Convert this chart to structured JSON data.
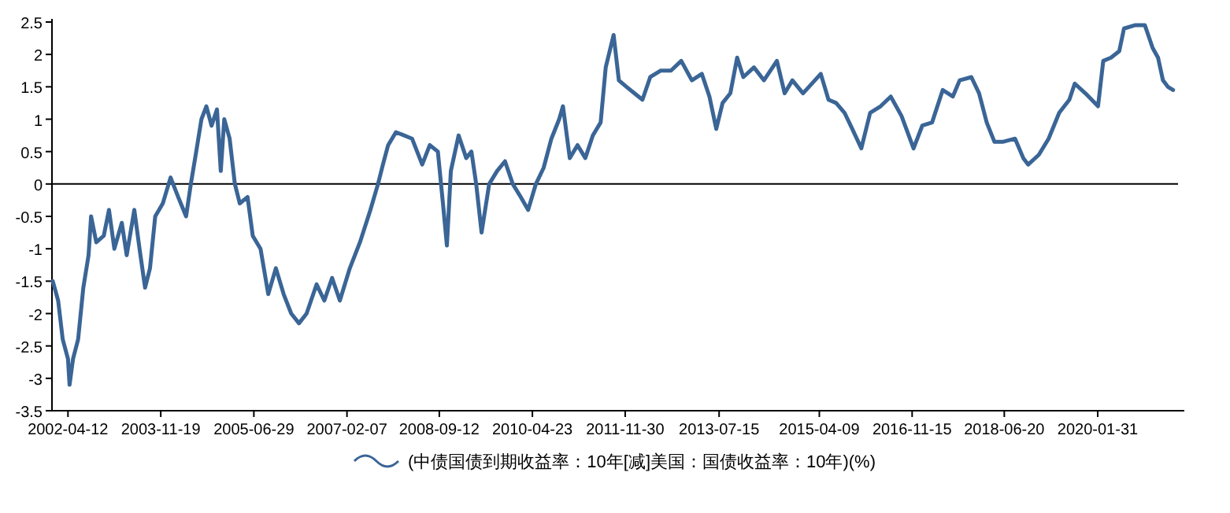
{
  "chart_data": {
    "type": "line",
    "x": [
      "2002-01-06",
      "2002-02-09",
      "2002-03-10",
      "2002-04-12",
      "2002-04-22",
      "2002-05-14",
      "2002-06-15",
      "2002-07-18",
      "2002-08-20",
      "2002-09-05",
      "2002-10-08",
      "2002-11-24",
      "2002-12-27",
      "2003-01-30",
      "2003-03-18",
      "2003-04-18",
      "2003-06-05",
      "2003-07-08",
      "2003-08-12",
      "2003-09-12",
      "2003-10-15",
      "2003-12-02",
      "2004-01-20",
      "2004-03-08",
      "2004-04-27",
      "2004-05-27",
      "2004-06-30",
      "2004-08-02",
      "2004-09-02",
      "2004-10-05",
      "2004-11-08",
      "2004-12-02",
      "2004-12-24",
      "2005-01-27",
      "2005-03-01",
      "2005-04-01",
      "2005-05-20",
      "2005-06-22",
      "2005-08-10",
      "2005-09-28",
      "2005-11-15",
      "2006-01-03",
      "2006-02-20",
      "2006-04-10",
      "2006-05-28",
      "2006-07-30",
      "2006-09-17",
      "2006-11-05",
      "2006-12-24",
      "2007-02-25",
      "2007-04-30",
      "2007-07-05",
      "2007-08-22",
      "2007-09-22",
      "2007-10-25",
      "2007-12-13",
      "2008-03-24",
      "2008-05-27",
      "2008-07-14",
      "2008-09-03",
      "2008-10-05",
      "2008-10-30",
      "2008-11-24",
      "2009-01-12",
      "2009-03-01",
      "2009-04-03",
      "2009-05-03",
      "2009-06-06",
      "2009-07-24",
      "2009-09-12",
      "2009-11-01",
      "2009-12-20",
      "2010-02-08",
      "2010-03-27",
      "2010-05-15",
      "2010-07-03",
      "2010-08-21",
      "2010-10-09",
      "2010-11-02",
      "2010-12-15",
      "2011-02-02",
      "2011-03-23",
      "2011-05-10",
      "2011-06-28",
      "2011-07-30",
      "2011-09-18",
      "2011-10-21",
      "2011-12-08",
      "2012-01-27",
      "2012-03-18",
      "2012-05-06",
      "2012-07-10",
      "2012-09-14",
      "2012-11-18",
      "2013-01-24",
      "2013-03-28",
      "2013-05-15",
      "2013-06-27",
      "2013-08-06",
      "2013-09-24",
      "2013-11-06",
      "2013-12-15",
      "2014-02-20",
      "2014-04-24",
      "2014-07-15",
      "2014-09-02",
      "2014-10-21",
      "2014-12-27",
      "2015-04-18",
      "2015-06-06",
      "2015-07-24",
      "2015-09-15",
      "2015-11-03",
      "2015-12-30",
      "2016-02-24",
      "2016-04-30",
      "2016-07-03",
      "2016-09-09",
      "2016-11-24",
      "2017-01-18",
      "2017-03-21",
      "2017-05-27",
      "2017-07-30",
      "2017-09-11",
      "2017-11-24",
      "2018-01-12",
      "2018-03-01",
      "2018-04-19",
      "2018-06-09",
      "2018-08-27",
      "2018-10-18",
      "2018-11-18",
      "2019-01-24",
      "2019-03-27",
      "2019-06-02",
      "2019-08-05",
      "2019-09-08",
      "2019-11-14",
      "2020-02-02",
      "2020-03-06",
      "2020-04-24",
      "2020-06-15",
      "2020-07-15",
      "2020-09-21",
      "2020-11-24",
      "2021-01-12",
      "2021-02-15",
      "2021-03-18",
      "2021-04-18",
      "2021-05-21"
    ],
    "series": [
      {
        "name": "(中债国债到期收益率：10年[减]美国：国债收益率：10年)(%)",
        "color": "#3a6596",
        "values": [
          -1.5,
          -1.8,
          -2.4,
          -2.7,
          -3.1,
          -2.7,
          -2.4,
          -1.6,
          -1.1,
          -0.5,
          -0.9,
          -0.8,
          -0.4,
          -1.0,
          -0.6,
          -1.1,
          -0.4,
          -1.0,
          -1.6,
          -1.3,
          -0.5,
          -0.3,
          0.1,
          -0.2,
          -0.5,
          0.0,
          0.5,
          1.0,
          1.2,
          0.9,
          1.15,
          0.2,
          1.0,
          0.7,
          0.0,
          -0.3,
          -0.2,
          -0.8,
          -1.0,
          -1.7,
          -1.3,
          -1.7,
          -2.0,
          -2.15,
          -2.0,
          -1.55,
          -1.8,
          -1.45,
          -1.8,
          -1.3,
          -0.9,
          -0.4,
          0.0,
          0.3,
          0.6,
          0.8,
          0.7,
          0.3,
          0.6,
          0.5,
          -0.3,
          -0.95,
          0.2,
          0.75,
          0.4,
          0.5,
          0.0,
          -0.75,
          0.0,
          0.2,
          0.35,
          0.0,
          -0.2,
          -0.4,
          0.0,
          0.25,
          0.7,
          1.0,
          1.2,
          0.4,
          0.6,
          0.4,
          0.75,
          0.95,
          1.8,
          2.3,
          1.6,
          1.5,
          1.4,
          1.3,
          1.65,
          1.75,
          1.75,
          1.9,
          1.6,
          1.7,
          1.35,
          0.85,
          1.25,
          1.4,
          1.95,
          1.65,
          1.8,
          1.6,
          1.9,
          1.4,
          1.6,
          1.4,
          1.7,
          1.3,
          1.25,
          1.1,
          0.85,
          0.55,
          1.1,
          1.2,
          1.35,
          1.05,
          0.55,
          0.9,
          0.95,
          1.45,
          1.35,
          1.6,
          1.65,
          1.4,
          0.95,
          0.65,
          0.65,
          0.7,
          0.4,
          0.3,
          0.45,
          0.7,
          1.1,
          1.3,
          1.55,
          1.4,
          1.2,
          1.9,
          1.95,
          2.05,
          2.4,
          2.45,
          2.45,
          2.1,
          1.95,
          1.6,
          1.5,
          1.45
        ]
      }
    ],
    "xlim": [
      "2002-01-01",
      "2021-07-31"
    ],
    "xticks": [
      "2002-04-12",
      "2003-11-19",
      "2005-06-29",
      "2007-02-07",
      "2008-09-12",
      "2010-04-23",
      "2011-11-30",
      "2013-07-15",
      "2015-04-09",
      "2016-11-15",
      "2018-06-20",
      "2020-01-31"
    ],
    "ylim": [
      -3.5,
      2.5
    ],
    "yticks": [
      -3.5,
      -3,
      -2.5,
      -2,
      -1.5,
      -1,
      -0.5,
      0,
      0.5,
      1,
      1.5,
      2,
      2.5
    ],
    "ref_lines": [
      {
        "axis": "y",
        "value": 0,
        "color": "#000000"
      }
    ],
    "legend": "bottom"
  }
}
